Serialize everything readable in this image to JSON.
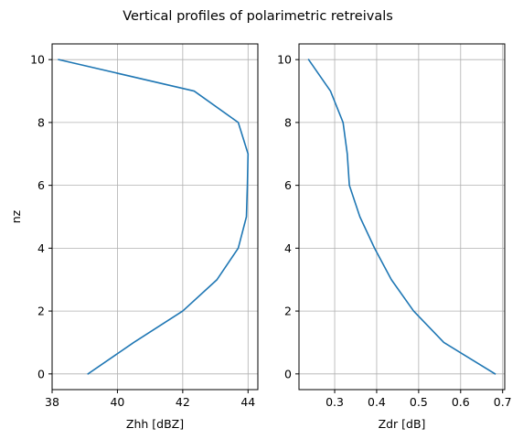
{
  "figure": {
    "title": "Vertical profiles of polarimetric retreivals",
    "line_color": "#1f77b4"
  },
  "chart_data": [
    {
      "type": "line",
      "xlabel": "Zhh [dBZ]",
      "ylabel": "nz",
      "xlim": [
        38,
        44.3
      ],
      "ylim": [
        -0.5,
        10.5
      ],
      "xticks": [
        38,
        40,
        42,
        44
      ],
      "yticks": [
        0,
        2,
        4,
        6,
        8,
        10
      ],
      "grid": true,
      "series": [
        {
          "x": [
            39.1,
            40.5,
            42.0,
            43.05,
            43.7,
            43.95,
            43.98,
            44.0,
            43.7,
            42.35,
            38.2
          ],
          "y": [
            0,
            1,
            2,
            3,
            4,
            5,
            6,
            7,
            8,
            9,
            10
          ]
        }
      ]
    },
    {
      "type": "line",
      "xlabel": "Zdr [dB]",
      "ylabel": "",
      "xlim": [
        0.215,
        0.705
      ],
      "ylim": [
        -0.5,
        10.5
      ],
      "xticks": [
        0.3,
        0.4,
        0.5,
        0.6,
        0.7
      ],
      "yticks": [
        0,
        2,
        4,
        6,
        8,
        10
      ],
      "grid": true,
      "series": [
        {
          "x": [
            0.682,
            0.56,
            0.488,
            0.435,
            0.395,
            0.36,
            0.335,
            0.33,
            0.32,
            0.29,
            0.238
          ],
          "y": [
            0,
            1,
            2,
            3,
            4,
            5,
            6,
            7,
            8,
            9,
            10
          ]
        }
      ]
    }
  ]
}
